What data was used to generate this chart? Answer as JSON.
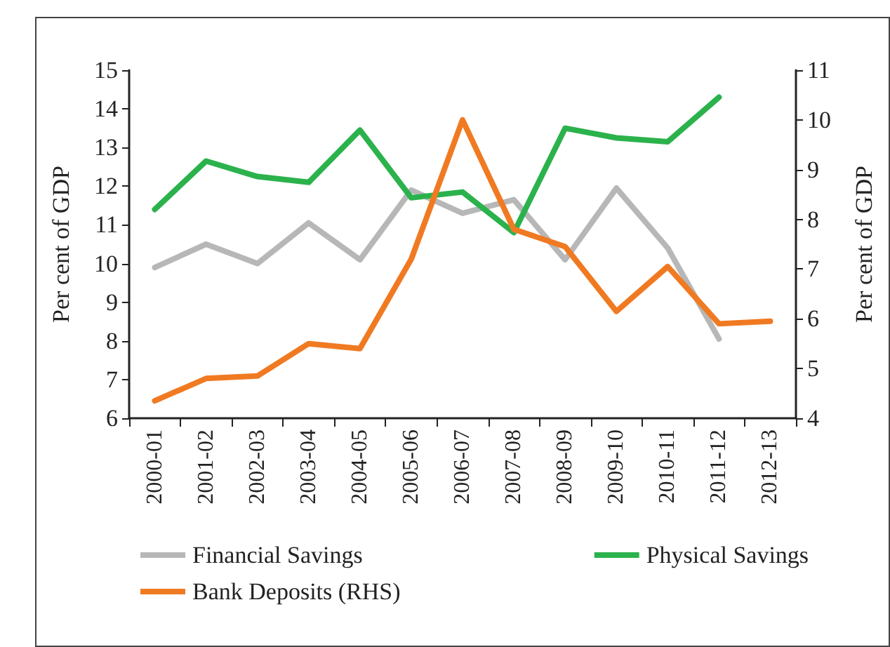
{
  "chart_data": {
    "type": "line",
    "ylabel": "Per cent of GDP",
    "y2label": "Per cent of GDP",
    "categories": [
      "2000-01",
      "2001-02",
      "2002-03",
      "2003-04",
      "2004-05",
      "2005-06",
      "2006-07",
      "2007-08",
      "2008-09",
      "2009-10",
      "2010-11",
      "2011-12",
      "2012-13"
    ],
    "series": [
      {
        "name": "Financial Savings",
        "color": "#b7b7b7",
        "values": [
          9.9,
          10.5,
          10.0,
          11.05,
          10.1,
          11.9,
          11.3,
          11.65,
          10.1,
          11.95,
          10.4,
          8.05,
          null
        ]
      },
      {
        "name": "Physical Savings",
        "color": "#2bb24c",
        "values": [
          11.4,
          12.65,
          12.25,
          12.1,
          13.45,
          11.7,
          11.85,
          10.8,
          13.5,
          13.25,
          13.15,
          14.3,
          null
        ]
      },
      {
        "name": "Bank Deposits (RHS)",
        "color": "#f07a22",
        "axis": "y2",
        "values": [
          4.35,
          4.8,
          4.85,
          5.5,
          5.4,
          7.2,
          10.0,
          7.8,
          7.45,
          6.15,
          7.05,
          5.9,
          5.95
        ]
      }
    ],
    "ylim": [
      6,
      15
    ],
    "yticks": [
      6,
      7,
      8,
      9,
      10,
      11,
      12,
      13,
      14,
      15
    ],
    "y2lim": [
      4,
      11
    ],
    "y2ticks": [
      4,
      5,
      6,
      7,
      8,
      9,
      10,
      11
    ],
    "grid": false,
    "legend": "bottom",
    "marker": "none"
  }
}
